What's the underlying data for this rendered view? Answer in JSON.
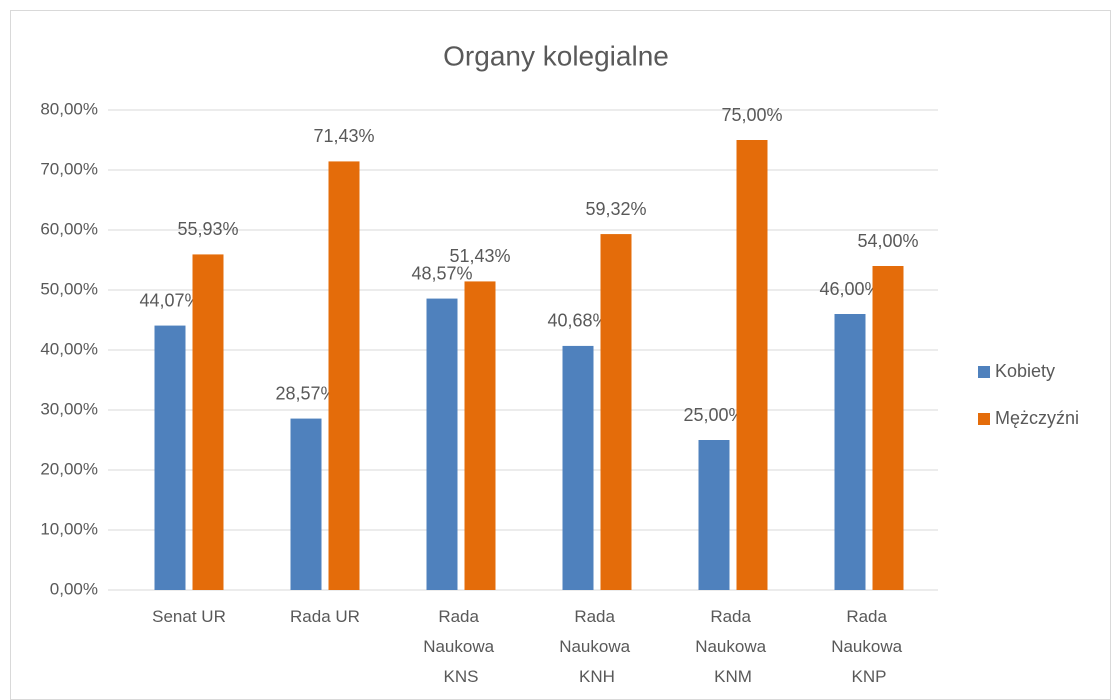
{
  "chart_data": {
    "type": "bar",
    "title": "Organy kolegialne",
    "categories": [
      "Senat UR",
      "Rada UR",
      "Rada Naukowa KNS",
      "Rada Naukowa KNH",
      "Rada Naukowa KNM",
      "Rada Naukowa KNP"
    ],
    "series": [
      {
        "name": "Kobiety",
        "color": "#4f81bd",
        "values": [
          44.07,
          28.57,
          48.57,
          40.68,
          25.0,
          46.0
        ],
        "value_labels": [
          "44,07%",
          "28,57%",
          "48,57%",
          "40,68%",
          "25,00%",
          "46,00%"
        ]
      },
      {
        "name": "Mężczyźni",
        "color": "#e46c0a",
        "values": [
          55.93,
          71.43,
          51.43,
          59.32,
          75.0,
          54.0
        ],
        "value_labels": [
          "55,93%",
          "71,43%",
          "51,43%",
          "59,32%",
          "75,00%",
          "54,00%"
        ]
      }
    ],
    "ylim": [
      0,
      80
    ],
    "yticks": [
      {
        "value": 0,
        "label": "0,00%"
      },
      {
        "value": 10,
        "label": "10,00%"
      },
      {
        "value": 20,
        "label": "20,00%"
      },
      {
        "value": 30,
        "label": "30,00%"
      },
      {
        "value": 40,
        "label": "40,00%"
      },
      {
        "value": 50,
        "label": "50,00%"
      },
      {
        "value": 60,
        "label": "60,00%"
      },
      {
        "value": 70,
        "label": "70,00%"
      },
      {
        "value": 80,
        "label": "80,00%"
      }
    ],
    "grid": true,
    "legend": "right"
  }
}
